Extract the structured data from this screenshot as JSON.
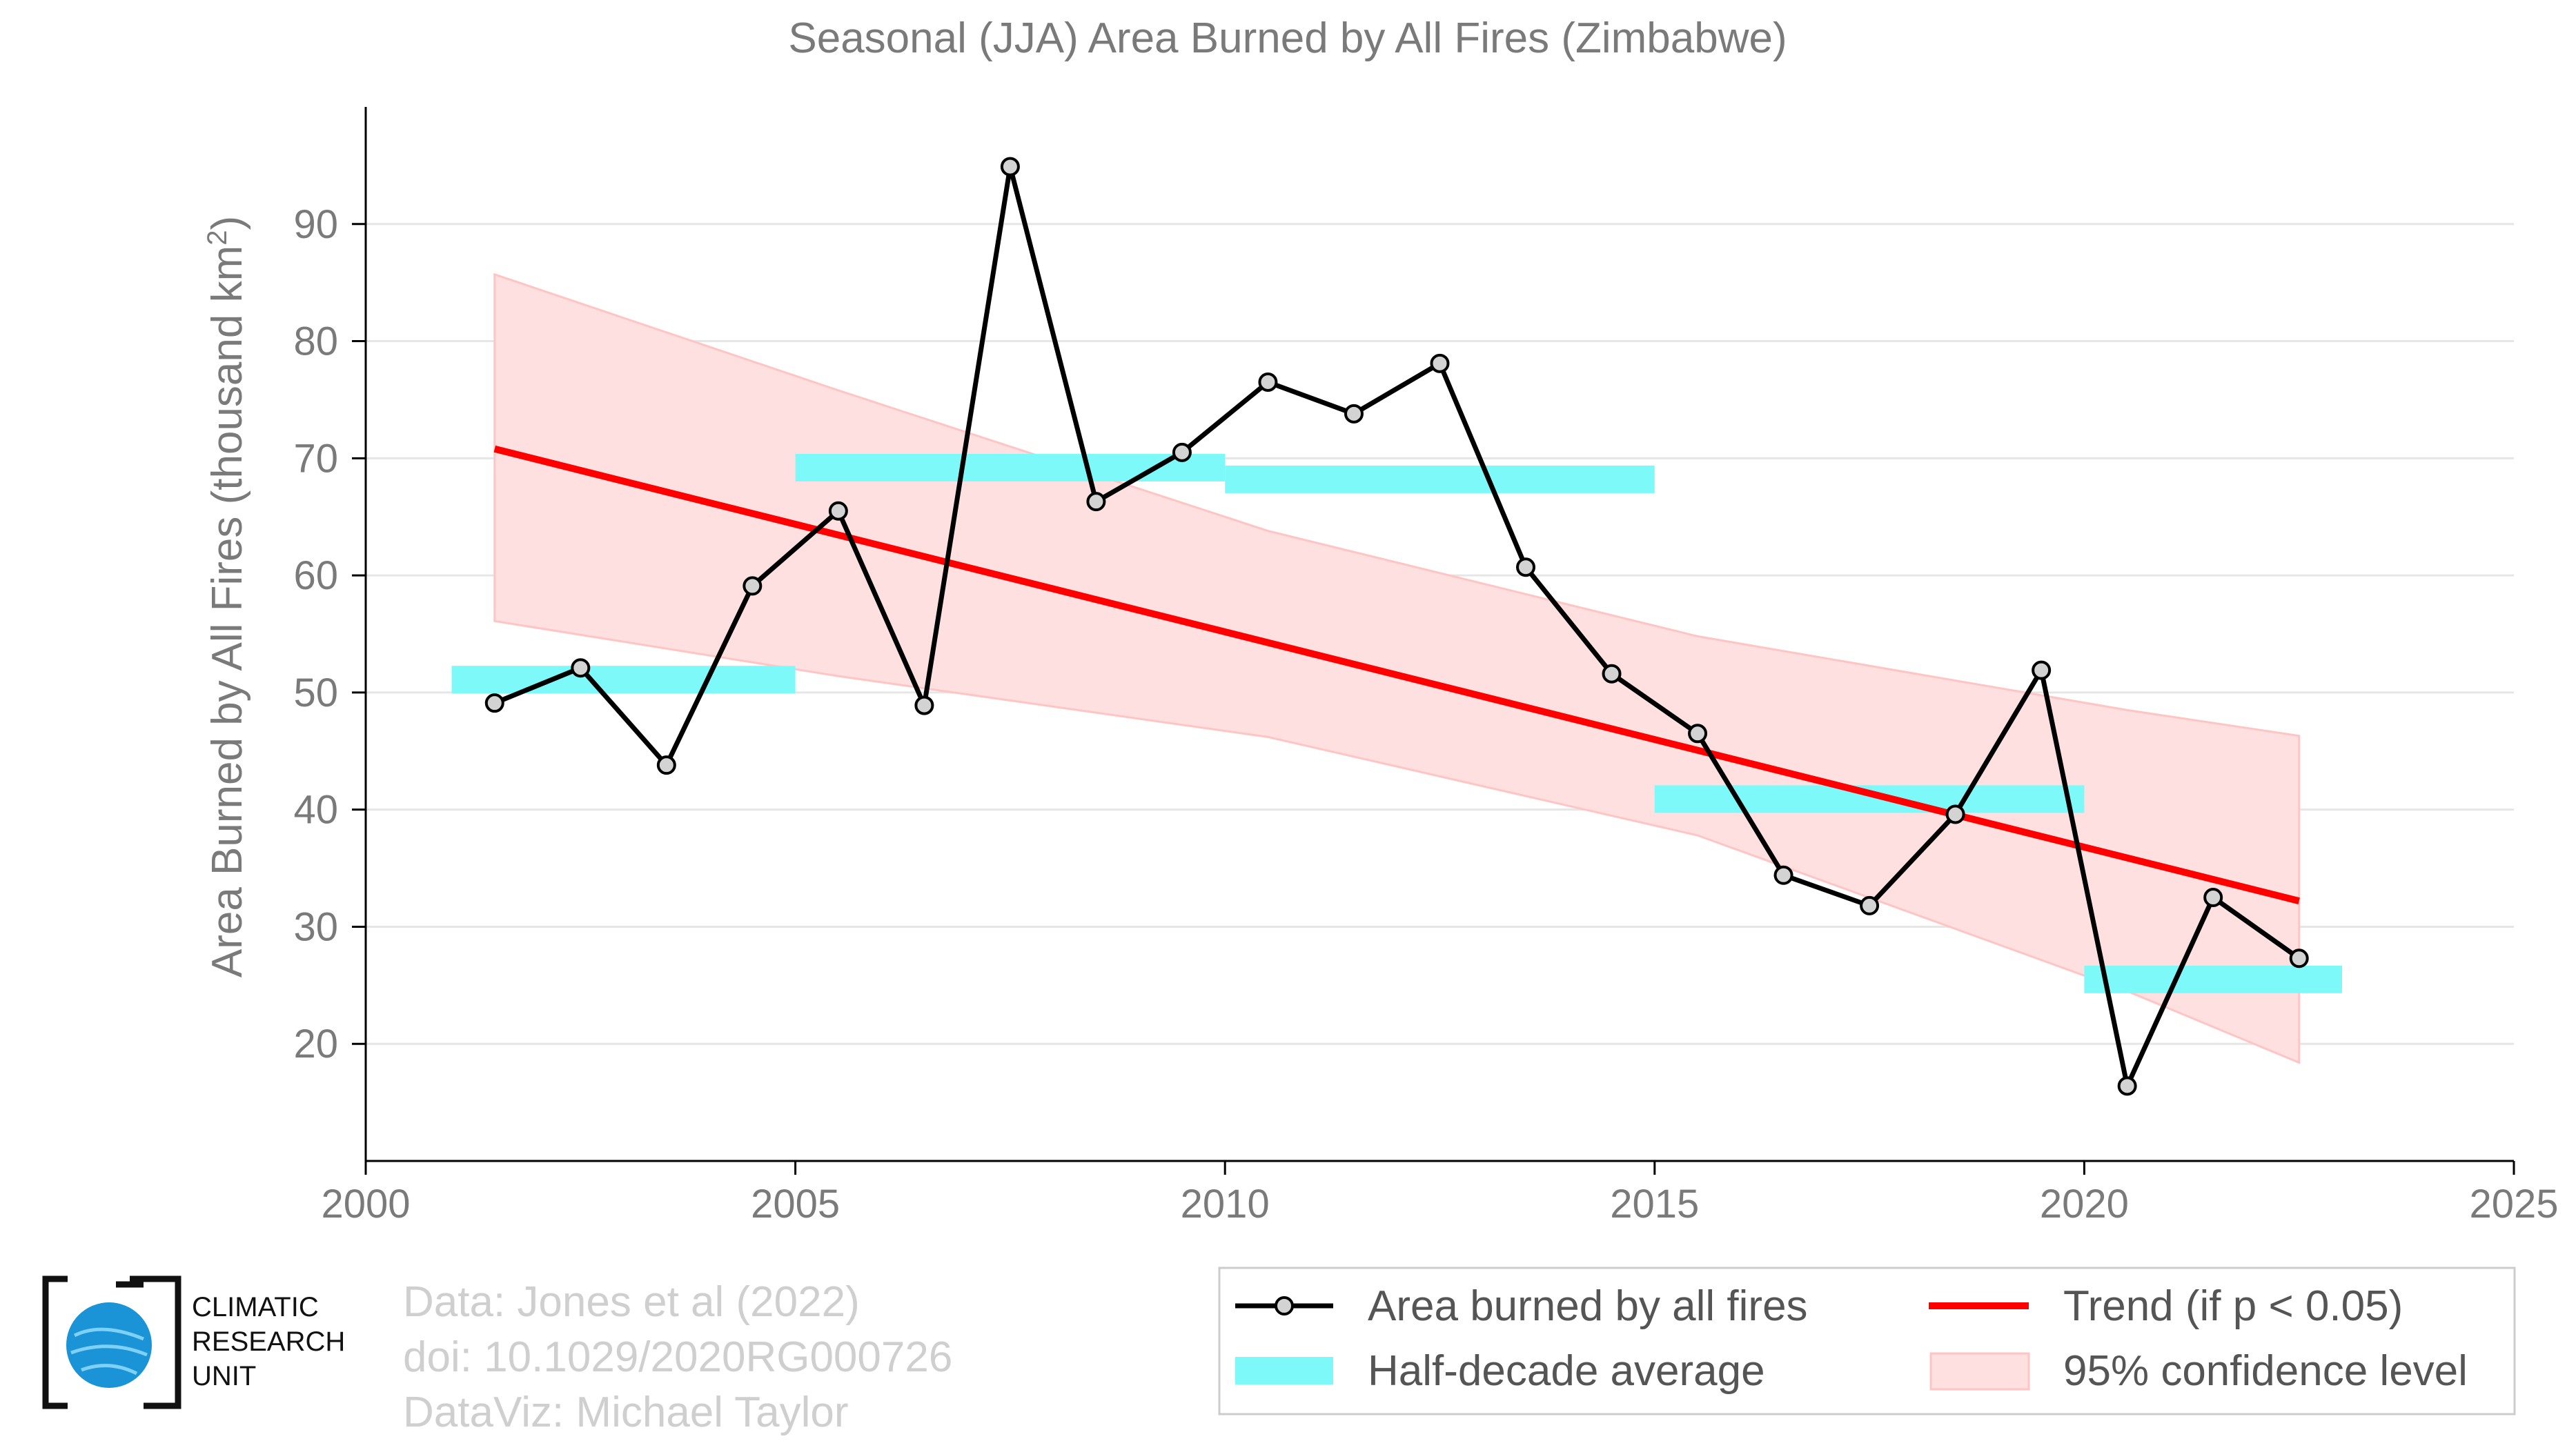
{
  "chart_data": {
    "type": "line",
    "title": "Seasonal (JJA) Area Burned by All Fires (Zimbabwe)",
    "xlabel": "",
    "ylabel_main": "Area Burned by All Fires (thousand km",
    "ylabel_sup": "2",
    "ylabel_close": ")",
    "xlim": [
      2000,
      2025
    ],
    "ylim": [
      10,
      100
    ],
    "xticks": [
      2000,
      2005,
      2010,
      2015,
      2020,
      2025
    ],
    "yticks": [
      20,
      30,
      40,
      50,
      60,
      70,
      80,
      90
    ],
    "grid": "horizontal",
    "legend_position": "bottom-right",
    "series": [
      {
        "name": "Area burned by all fires",
        "color": "#000000",
        "x": [
          2001.5,
          2002.5,
          2003.5,
          2004.5,
          2005.5,
          2006.5,
          2007.5,
          2008.5,
          2009.5,
          2010.5,
          2011.5,
          2012.5,
          2013.5,
          2014.5,
          2015.5,
          2016.5,
          2017.5,
          2018.5,
          2019.5,
          2020.5,
          2021.5,
          2022.5
        ],
        "y": [
          49.1,
          52.1,
          43.8,
          59.1,
          65.5,
          48.9,
          94.9,
          66.3,
          70.5,
          76.5,
          73.8,
          78.1,
          60.7,
          51.6,
          46.5,
          34.4,
          31.8,
          39.6,
          51.9,
          16.4,
          32.5,
          27.3
        ]
      }
    ],
    "half_decade_average": {
      "name": "Half-decade average",
      "color": "#7ef9f9",
      "segments": [
        {
          "x0": 2001,
          "x1": 2005,
          "y": 51.1
        },
        {
          "x0": 2005,
          "x1": 2010,
          "y": 69.2
        },
        {
          "x0": 2010,
          "x1": 2015,
          "y": 68.2
        },
        {
          "x0": 2015,
          "x1": 2020,
          "y": 40.9
        },
        {
          "x0": 2020,
          "x1": 2023,
          "y": 25.5
        }
      ]
    },
    "trend": {
      "name": "Trend (if p < 0.05)",
      "color": "#ff0000",
      "x": [
        2001.5,
        2022.5
      ],
      "y": [
        70.8,
        32.2
      ]
    },
    "confidence_band": {
      "name": "95% confidence level",
      "color": "#ffe0e0",
      "x": [
        2001.5,
        2005.5,
        2010.5,
        2015.5,
        2020.5,
        2022.5
      ],
      "upper": [
        85.7,
        75.8,
        63.8,
        54.8,
        48.5,
        46.3
      ],
      "lower": [
        56.1,
        51.4,
        46.2,
        37.8,
        24.5,
        18.4
      ]
    }
  },
  "credits": {
    "line1": "Data: Jones et al (2022)",
    "line2": "doi: 10.1029/2020RG000726",
    "line3": "DataViz: Michael Taylor"
  },
  "logo": {
    "line1": "CLIMATIC",
    "line2": "RESEARCH",
    "line3": "UNIT"
  }
}
